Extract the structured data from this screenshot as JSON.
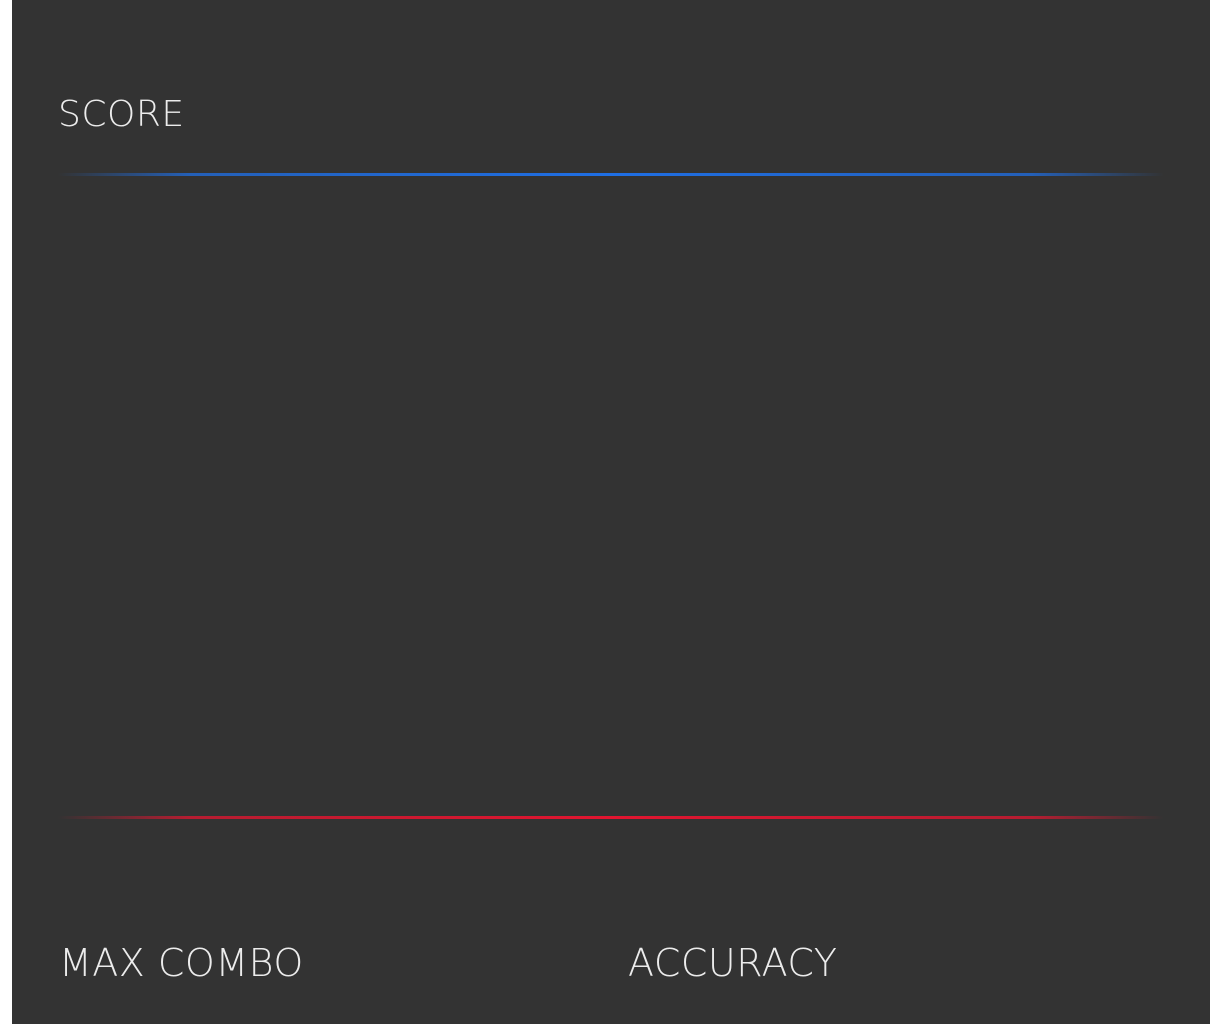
{
  "results": {
    "score_label": "SCORE",
    "max_combo_label": "MAX COMBO",
    "accuracy_label": "ACCURACY"
  },
  "colors": {
    "panel_background": "#333333",
    "label_text": "#ececec",
    "top_divider": "#1f6fe5",
    "bottom_divider": "#e21530"
  }
}
